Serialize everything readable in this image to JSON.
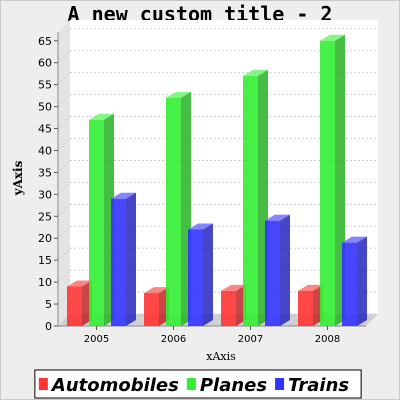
{
  "chart_data": {
    "type": "bar",
    "title": "A new custom title - 2",
    "xlabel": "xAxis",
    "ylabel": "yAxis",
    "categories": [
      "2005",
      "2006",
      "2007",
      "2008"
    ],
    "ylim": [
      0,
      67
    ],
    "yticks": [
      0,
      5,
      10,
      15,
      20,
      25,
      30,
      35,
      40,
      45,
      50,
      55,
      60,
      65
    ],
    "grid": true,
    "legend_position": "bottom",
    "series": [
      {
        "name": "Automobiles",
        "color": "#ff3333",
        "values": [
          9,
          7.5,
          8,
          8
        ]
      },
      {
        "name": "Planes",
        "color": "#33ee33",
        "values": [
          47,
          52,
          57,
          65
        ]
      },
      {
        "name": "Trains",
        "color": "#3333ff",
        "values": [
          29,
          22,
          24,
          19
        ]
      }
    ]
  }
}
